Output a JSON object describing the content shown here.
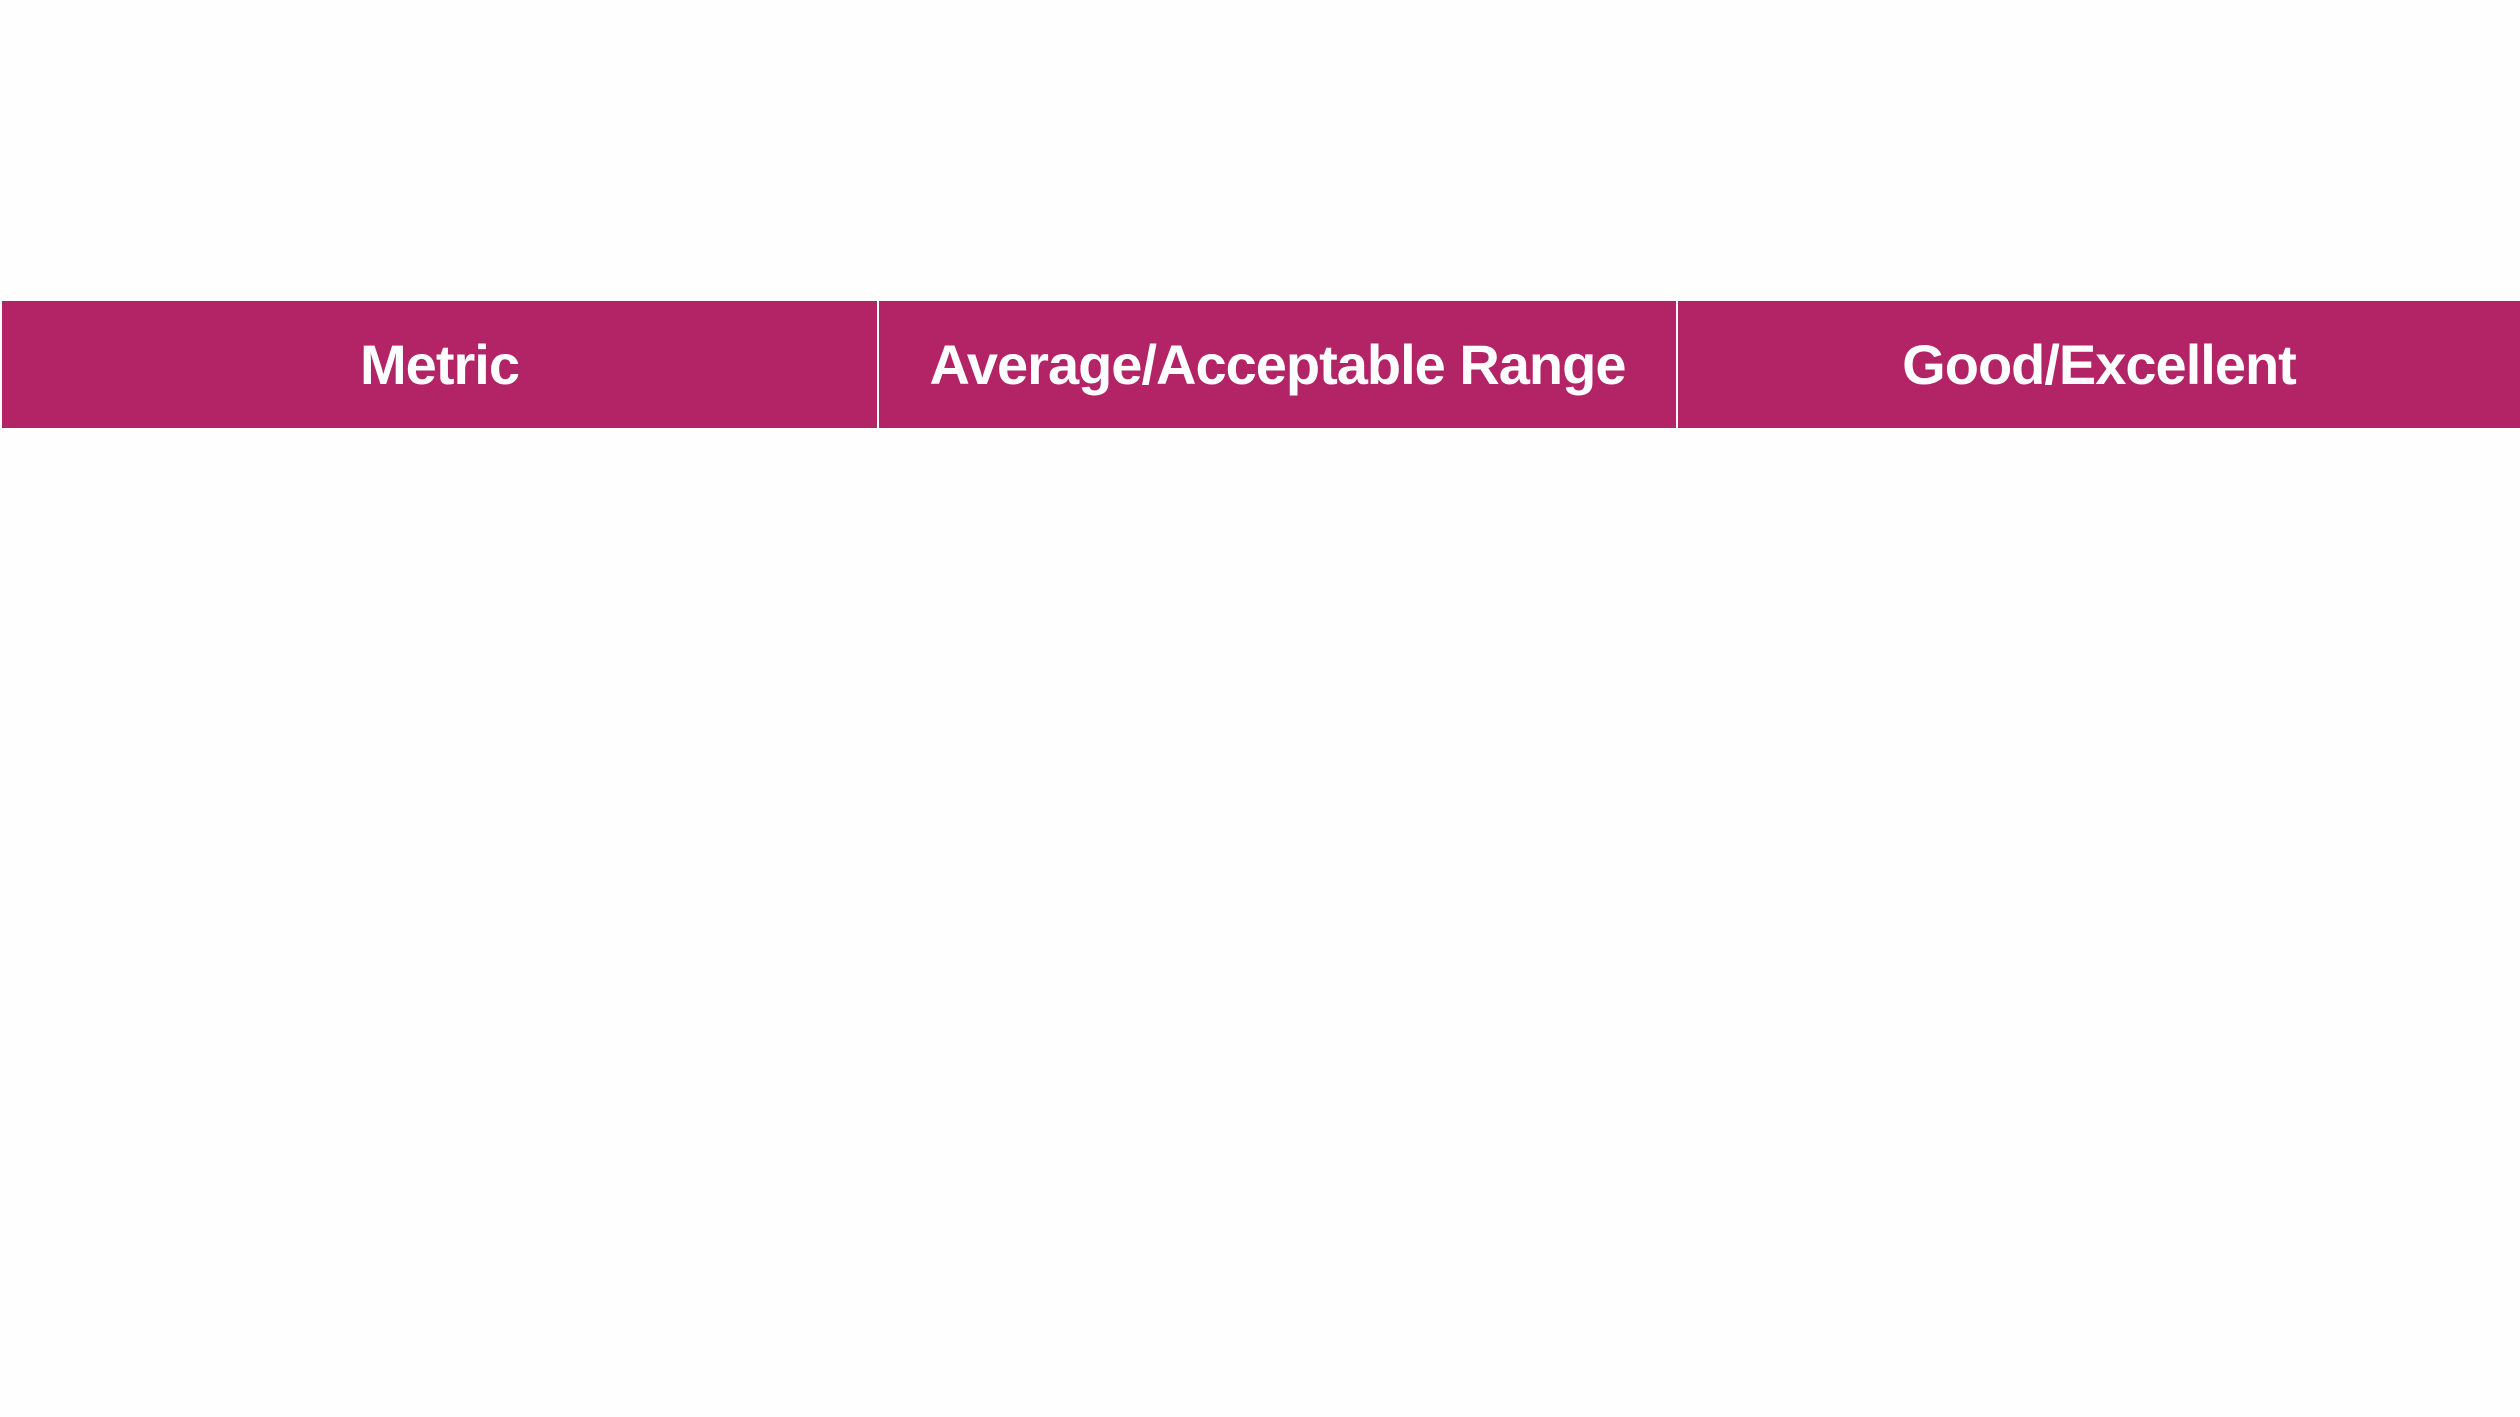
{
  "table": {
    "header_color": "#b22466",
    "columns": [
      {
        "label": "Metric"
      },
      {
        "label": "Average/Acceptable Range"
      },
      {
        "label": "Good/Excellent"
      }
    ],
    "rows": []
  }
}
